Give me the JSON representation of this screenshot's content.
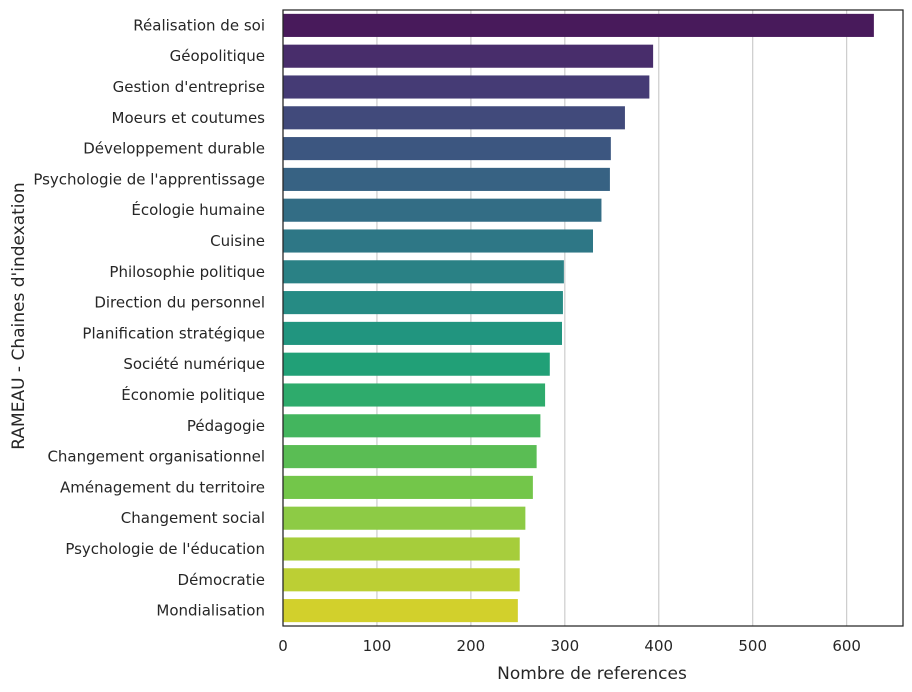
{
  "chart_data": {
    "type": "bar",
    "orientation": "horizontal",
    "xlabel": "Nombre de references",
    "ylabel": "RAMEAU - Chaines d'indexation",
    "xlim": [
      0,
      660
    ],
    "xticks": [
      0,
      100,
      200,
      300,
      400,
      500,
      600
    ],
    "grid": "vertical",
    "palette": "viridis",
    "categories": [
      "Réalisation de soi",
      "Géopolitique",
      "Gestion d'entreprise",
      "Moeurs et coutumes",
      "Développement durable",
      "Psychologie de l'apprentissage",
      "Écologie humaine",
      "Cuisine",
      "Philosophie politique",
      "Direction du personnel",
      "Planification stratégique",
      "Société numérique",
      "Économie politique",
      "Pédagogie",
      "Changement organisationnel",
      "Aménagement du territoire",
      "Changement social",
      "Psychologie de l'éducation",
      "Démocratie",
      "Mondialisation"
    ],
    "values": [
      629,
      394,
      390,
      364,
      349,
      348,
      339,
      330,
      299,
      298,
      297,
      284,
      279,
      274,
      270,
      266,
      258,
      252,
      252,
      250
    ],
    "colors": [
      "#481a5b",
      "#482d6b",
      "#453b75",
      "#414a7b",
      "#3c5680",
      "#376283",
      "#336d85",
      "#2e7786",
      "#2a8185",
      "#268b84",
      "#21957f",
      "#21a077",
      "#2eab6c",
      "#43b55e",
      "#5abd54",
      "#73c64a",
      "#8dcb45",
      "#a6cd3b",
      "#bccf34",
      "#d2d02c"
    ]
  }
}
